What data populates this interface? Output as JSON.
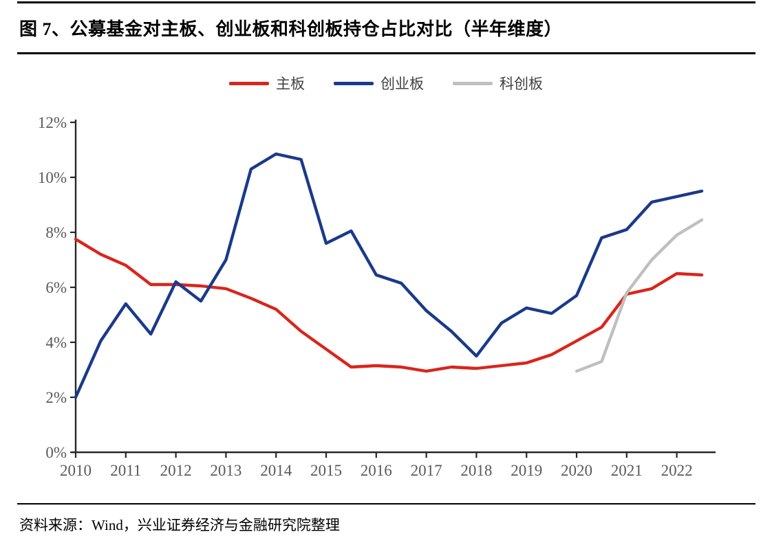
{
  "figure": {
    "title": "图 7、公募基金对主板、创业板和科创板持仓占比对比（半年维度）",
    "source": "资料来源：Wind，兴业证券经济与金融研究院整理"
  },
  "colors": {
    "main_board": "#D9251D",
    "chinext": "#1A3A8A",
    "star_market": "#BFBFBF",
    "axis_text": "#595959",
    "axis_line": "#262626"
  },
  "chart_data": {
    "type": "line",
    "x": [
      "2010H1",
      "2010H2",
      "2011H1",
      "2011H2",
      "2012H1",
      "2012H2",
      "2013H1",
      "2013H2",
      "2014H1",
      "2014H2",
      "2015H1",
      "2015H2",
      "2016H1",
      "2016H2",
      "2017H1",
      "2017H2",
      "2018H1",
      "2018H2",
      "2019H1",
      "2019H2",
      "2020H1",
      "2020H2",
      "2021H1",
      "2021H2",
      "2022H1",
      "2022H2"
    ],
    "x_tick_labels": [
      "2010",
      "2011",
      "2012",
      "2013",
      "2014",
      "2015",
      "2016",
      "2017",
      "2018",
      "2019",
      "2020",
      "2021",
      "2022"
    ],
    "y_ticks": [
      "0%",
      "2%",
      "4%",
      "6%",
      "8%",
      "10%",
      "12%"
    ],
    "ylim": [
      0,
      12
    ],
    "grid": false,
    "legend_position": "top",
    "series": [
      {
        "name": "主板",
        "color": "#D9251D",
        "values": [
          7.75,
          7.2,
          6.8,
          6.1,
          6.1,
          6.05,
          5.95,
          5.6,
          5.2,
          4.4,
          3.75,
          3.1,
          3.15,
          3.1,
          2.95,
          3.1,
          3.05,
          3.15,
          3.25,
          3.55,
          4.05,
          4.55,
          5.75,
          5.95,
          6.5,
          6.45
        ]
      },
      {
        "name": "创业板",
        "color": "#1A3A8A",
        "values": [
          2.0,
          4.05,
          5.4,
          4.3,
          6.2,
          5.5,
          7.0,
          10.3,
          10.85,
          10.65,
          7.6,
          8.05,
          6.45,
          6.15,
          5.15,
          4.4,
          3.5,
          4.7,
          5.25,
          5.05,
          5.7,
          7.8,
          8.1,
          9.1,
          9.3,
          9.5
        ]
      },
      {
        "name": "科创板",
        "color": "#BFBFBF",
        "values": [
          null,
          null,
          null,
          null,
          null,
          null,
          null,
          null,
          null,
          null,
          null,
          null,
          null,
          null,
          null,
          null,
          null,
          null,
          null,
          null,
          2.95,
          3.3,
          5.8,
          7.0,
          7.9,
          8.45
        ]
      }
    ]
  }
}
